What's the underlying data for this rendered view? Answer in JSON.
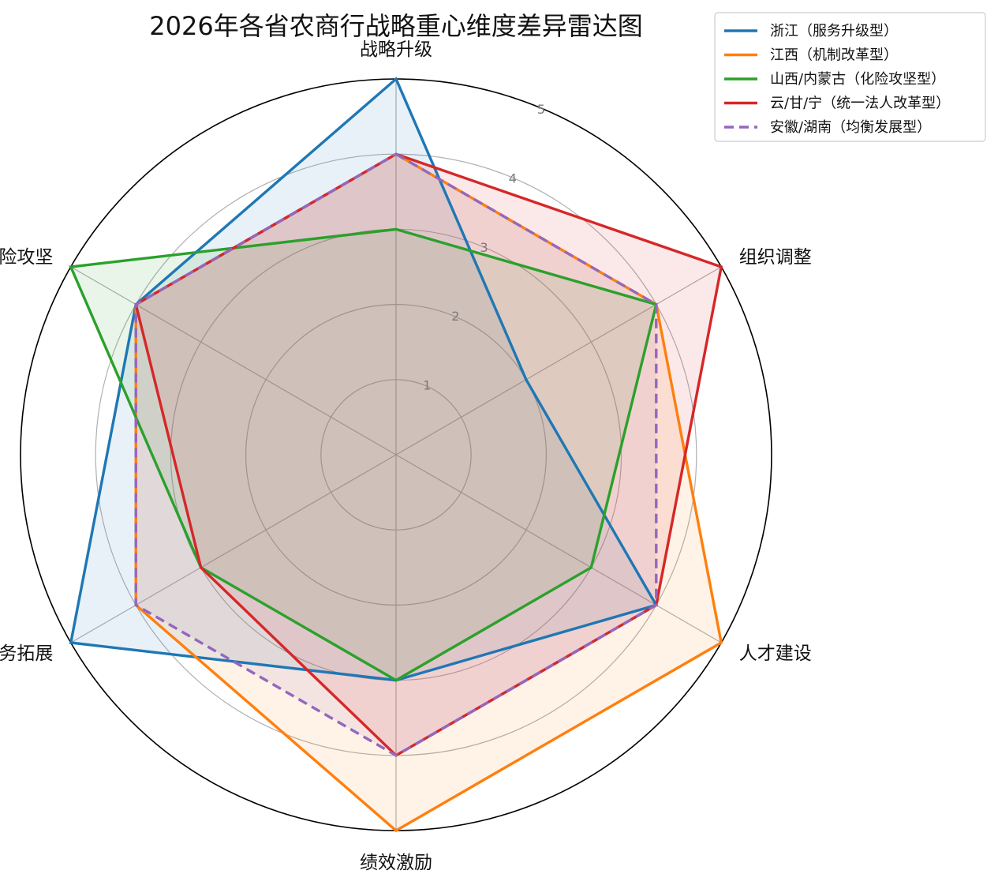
{
  "chart_data": {
    "type": "radar",
    "title": "2026年各省农商行战略重心维度差异雷达图",
    "axes": [
      "战略升级",
      "组织调整",
      "人才建设",
      "绩效激励",
      "业务拓展",
      "风险攻坚"
    ],
    "r_ticks": [
      "1",
      "2",
      "3",
      "4",
      "5"
    ],
    "r_range": [
      0,
      5
    ],
    "grid": true,
    "legend_position": "top-right",
    "series": [
      {
        "name": "浙江（服务升级型）",
        "values": [
          5,
          2,
          4,
          3,
          5,
          4
        ],
        "color": "#1f77b4",
        "dashed": false
      },
      {
        "name": "江西（机制改革型）",
        "values": [
          4,
          4,
          5,
          5,
          4,
          4
        ],
        "color": "#ff7f0e",
        "dashed": false
      },
      {
        "name": "山西/内蒙古（化险攻坚型）",
        "values": [
          3,
          4,
          3,
          3,
          3,
          5
        ],
        "color": "#2ca02c",
        "dashed": false
      },
      {
        "name": "云/甘/宁（统一法人改革型）",
        "values": [
          4,
          5,
          4,
          4,
          3,
          4
        ],
        "color": "#d62728",
        "dashed": false
      },
      {
        "name": "安徽/湖南（均衡发展型）",
        "values": [
          4,
          4,
          4,
          4,
          4,
          4
        ],
        "color": "#9467bd",
        "dashed": true
      }
    ]
  }
}
